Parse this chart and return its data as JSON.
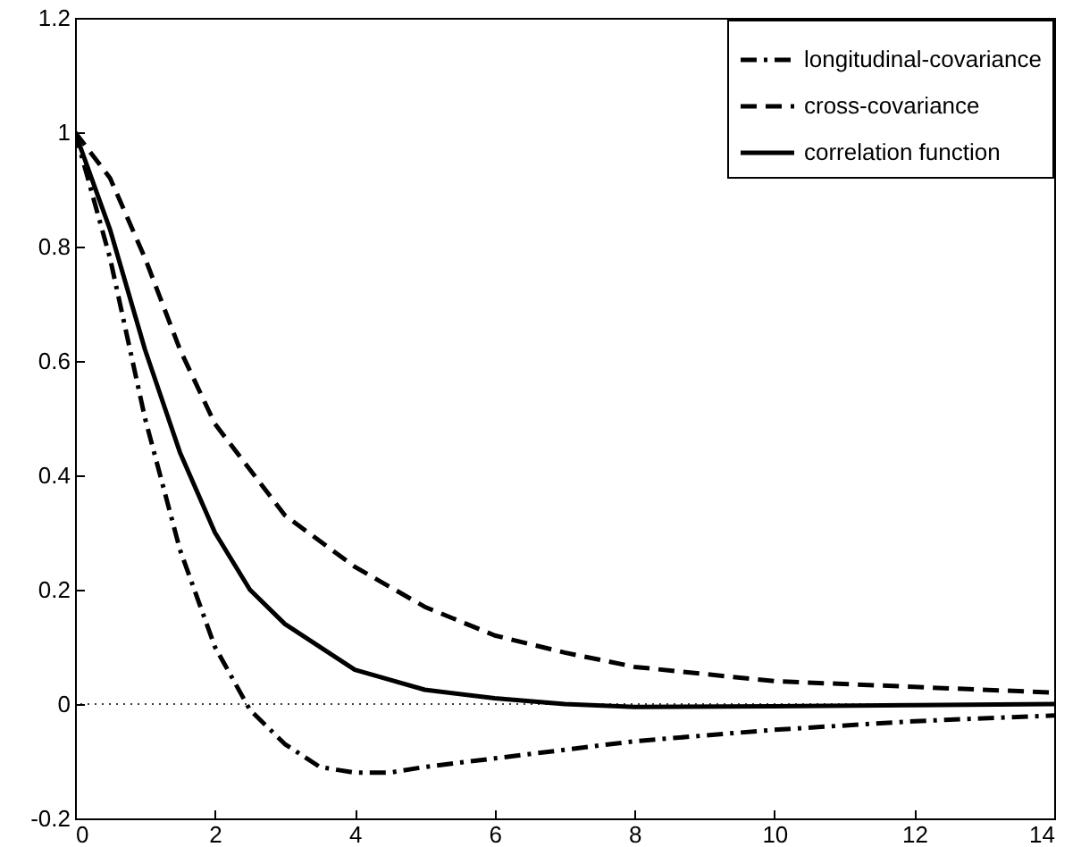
{
  "chart_data": {
    "type": "line",
    "xlim": [
      0,
      14
    ],
    "ylim": [
      -0.2,
      1.2
    ],
    "xticks": [
      0,
      2,
      4,
      6,
      8,
      10,
      12,
      14
    ],
    "yticks": [
      -0.2,
      0,
      0.2,
      0.4,
      0.6,
      0.8,
      1,
      1.2
    ],
    "grid": false,
    "legend": "top right",
    "marker": "none",
    "ref_lines": [
      {
        "axis": "y",
        "value": 0,
        "line_style": "dotted",
        "color": "#000000"
      }
    ],
    "series": [
      {
        "name": "longitudinal-covariance",
        "color": "#000000",
        "line_style": "dashdot",
        "x": [
          0,
          0.5,
          1,
          1.5,
          2,
          2.5,
          3,
          3.5,
          4,
          4.5,
          5,
          6,
          7,
          8,
          10,
          12,
          14
        ],
        "values": [
          1,
          0.78,
          0.5,
          0.27,
          0.1,
          -0.01,
          -0.07,
          -0.11,
          -0.12,
          -0.12,
          -0.11,
          -0.095,
          -0.08,
          -0.065,
          -0.045,
          -0.03,
          -0.02
        ]
      },
      {
        "name": "cross-covariance",
        "color": "#000000",
        "line_style": "dashed",
        "x": [
          0,
          0.5,
          1,
          1.5,
          2,
          3,
          4,
          5,
          6,
          7,
          8,
          10,
          12,
          14
        ],
        "values": [
          1,
          0.92,
          0.78,
          0.62,
          0.49,
          0.33,
          0.24,
          0.17,
          0.12,
          0.09,
          0.065,
          0.04,
          0.03,
          0.02
        ]
      },
      {
        "name": "correlation function",
        "color": "#000000",
        "line_style": "solid",
        "x": [
          0,
          0.5,
          1,
          1.5,
          2,
          2.5,
          3,
          4,
          5,
          6,
          7,
          8,
          10,
          12,
          14
        ],
        "values": [
          1,
          0.83,
          0.62,
          0.44,
          0.3,
          0.2,
          0.14,
          0.06,
          0.025,
          0.01,
          0,
          -0.005,
          -0.004,
          -0.002,
          0
        ]
      }
    ]
  }
}
